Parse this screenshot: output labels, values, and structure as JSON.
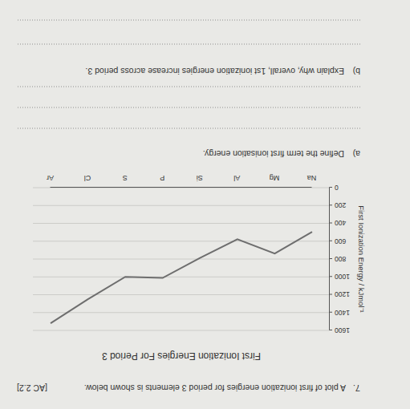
{
  "question": {
    "number": "7.",
    "text": "A plot of first ionization energies for period 3 elements is shown below.",
    "code": "[AC 2.2]",
    "parts": [
      {
        "label": "a)",
        "text": "Define the term first ionisation energy."
      },
      {
        "label": "b)",
        "text": "Explain why, overall, 1st ionization energies increase across period 3."
      }
    ]
  },
  "chart_data": {
    "type": "line",
    "title": "First Ionization Energies For Period 3",
    "y_label": "First Ionization Energy / kJmol⁻¹",
    "categories": [
      "Na",
      "Mg",
      "Al",
      "Si",
      "P",
      "S",
      "Cl",
      "Ar"
    ],
    "values": [
      496,
      738,
      578,
      787,
      1012,
      1000,
      1251,
      1521
    ],
    "color": "#6e6e6e",
    "ylim": [
      0,
      1600
    ],
    "yticks": [
      0,
      200,
      400,
      600,
      800,
      1000,
      1200,
      1400,
      1600
    ],
    "grid": true
  }
}
